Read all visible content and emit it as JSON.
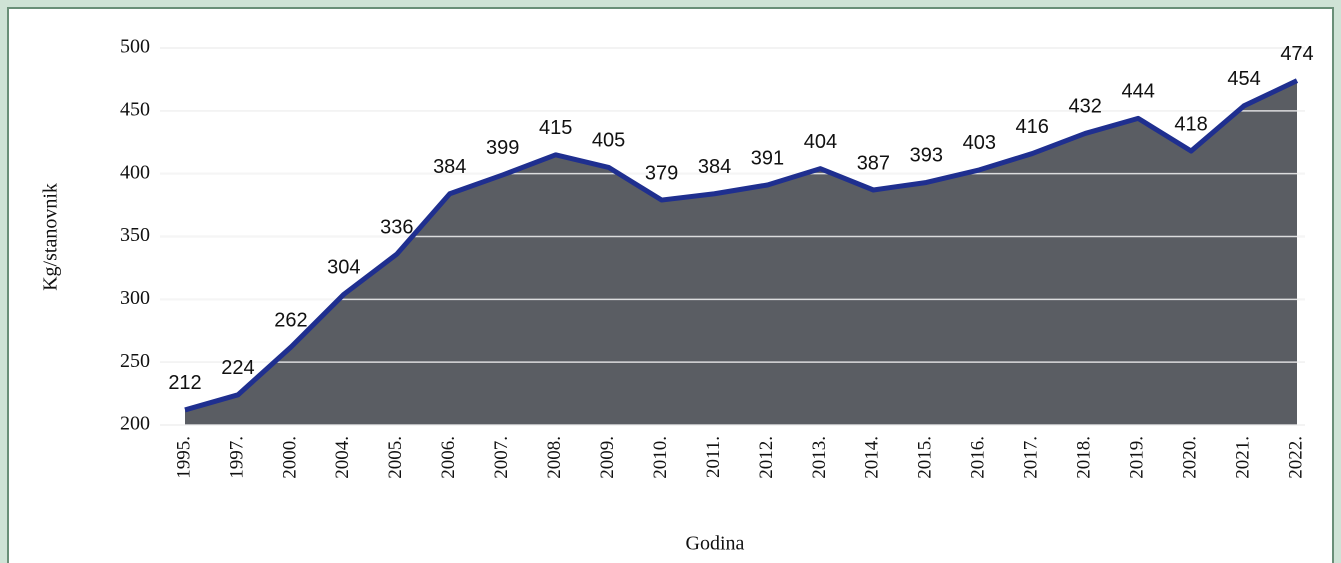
{
  "chart_data": {
    "type": "line",
    "x_label": "Godina",
    "y_label": "Kg/stanovnik",
    "categories": [
      "1995.",
      "1997.",
      "2000.",
      "2004.",
      "2005.",
      "2006.",
      "2007.",
      "2008.",
      "2009.",
      "2010.",
      "2011.",
      "2012.",
      "2013.",
      "2014.",
      "2015.",
      "2016.",
      "2017.",
      "2018.",
      "2019.",
      "2020.",
      "2021.",
      "2022."
    ],
    "values": [
      212,
      224,
      262,
      304,
      336,
      384,
      399,
      415,
      405,
      379,
      384,
      391,
      404,
      387,
      393,
      403,
      416,
      432,
      444,
      418,
      454,
      474
    ],
    "color": "#1f2f8f",
    "area_color": "#3d4148",
    "ylim": [
      200,
      500
    ],
    "yticks": [
      200,
      250,
      300,
      350,
      400,
      450,
      500
    ],
    "grid": true
  }
}
